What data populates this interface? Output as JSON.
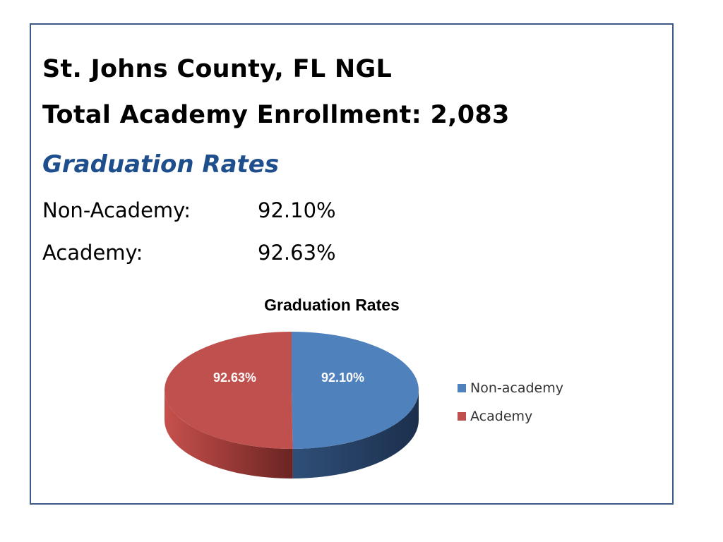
{
  "slide": {
    "title_line1": "St. Johns County, FL NGL",
    "title_line2": "Total Academy Enrollment: 2,083",
    "subtitle": "Graduation Rates",
    "rates": [
      {
        "label": "Non-Academy:",
        "value": "92.10%"
      },
      {
        "label": "Academy:",
        "value": "92.63%"
      }
    ]
  },
  "chart_data": {
    "type": "pie",
    "title": "Graduation Rates",
    "legend_position": "right",
    "slices": [
      {
        "name": "Non-academy",
        "value": 92.1,
        "label": "92.10%",
        "color": "#4f81bd"
      },
      {
        "name": "Academy",
        "value": 92.63,
        "label": "92.63%",
        "color": "#c0504d"
      }
    ]
  }
}
